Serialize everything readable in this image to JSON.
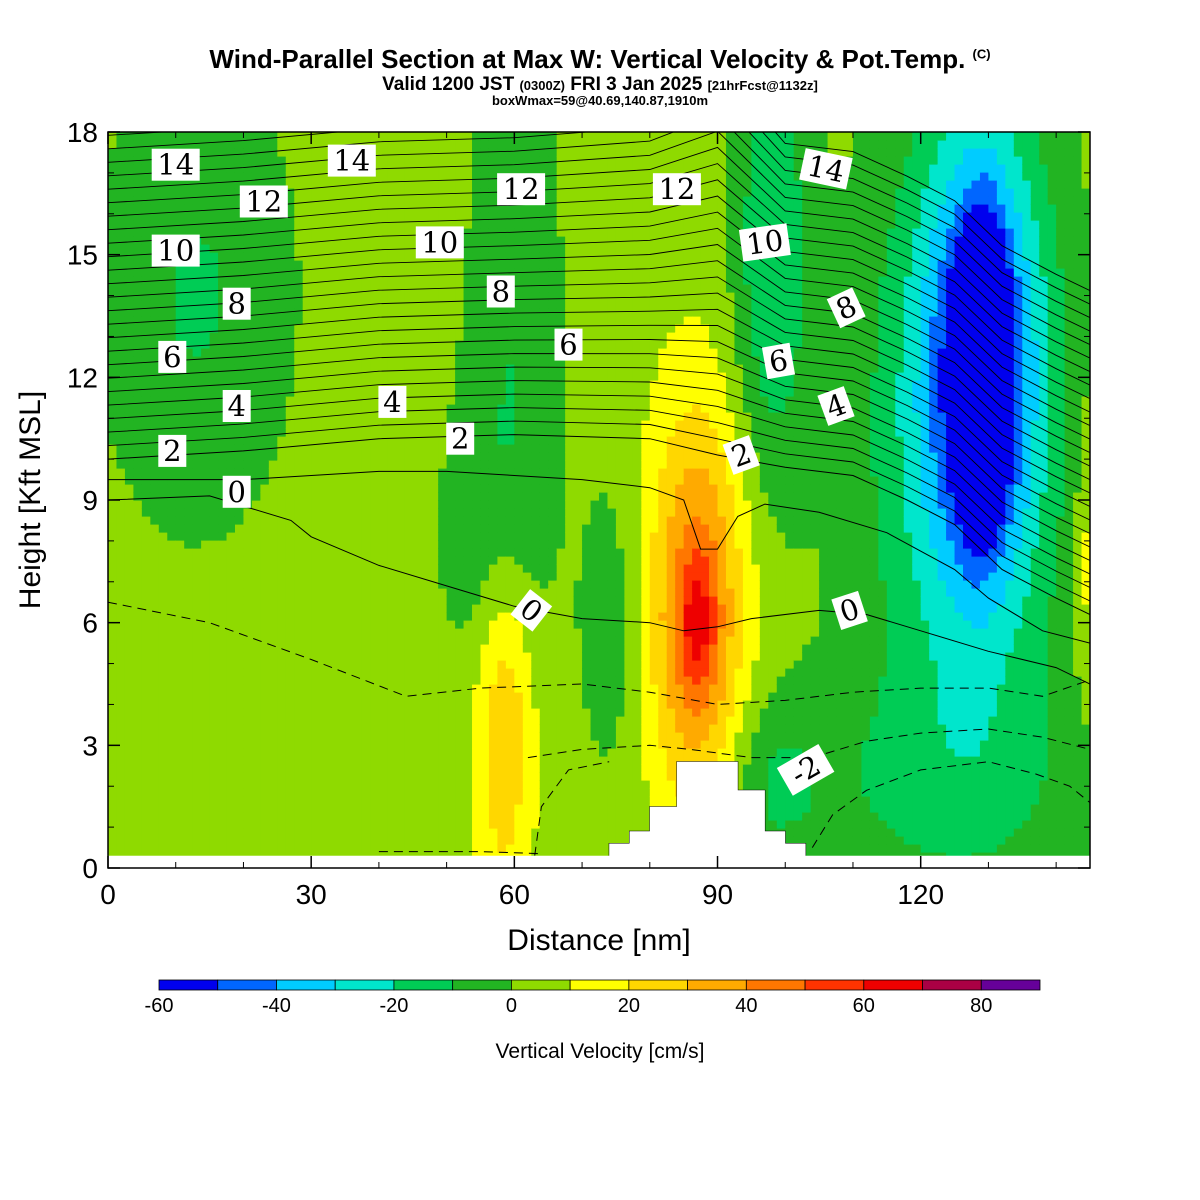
{
  "header": {
    "title": "Wind-Parallel Section at Max W: Vertical Velocity & Pot.Temp.",
    "copyright": "(C)",
    "valid_prefix": "Valid 1200 JST",
    "valid_zulu": "(0300Z)",
    "valid_date": "FRI 3 Jan 2025",
    "forecast": "[21hrFcst@1132z]",
    "box_info": "boxWmax=59@40.69,140.87,1910m"
  },
  "chart_data": {
    "type": "heatmap",
    "xlabel": "Distance [nm]",
    "ylabel": "Height [Kft MSL]",
    "xlim": [
      0,
      145
    ],
    "ylim": [
      0,
      18
    ],
    "xticks": [
      0,
      30,
      60,
      90,
      120
    ],
    "yticks": [
      0,
      3,
      6,
      9,
      12,
      15,
      18
    ],
    "colorbar": {
      "label": "Vertical Velocity [cm/s]",
      "levels": [
        -60,
        -50,
        -40,
        -30,
        -20,
        -10,
        0,
        10,
        20,
        30,
        40,
        50,
        60,
        70,
        80,
        90
      ],
      "tick_labels": [
        "-60",
        "-40",
        "-20",
        "0",
        "20",
        "40",
        "60",
        "80"
      ],
      "tick_values": [
        -60,
        -40,
        -20,
        0,
        20,
        40,
        60,
        80
      ],
      "colors": [
        "#0000ee",
        "#0066ff",
        "#00ccff",
        "#00e6cc",
        "#00cc55",
        "#22b422",
        "#8fda00",
        "#ffff00",
        "#ffd700",
        "#ffaa00",
        "#ff7700",
        "#ff3300",
        "#ee0000",
        "#aa0044",
        "#660099"
      ]
    },
    "background_value": 5,
    "features": [
      {
        "x": 129,
        "y": 12.0,
        "sx": 2.2,
        "sy": 2.2,
        "amp": -70
      },
      {
        "x": 129,
        "y": 12.5,
        "sx": 6,
        "sy": 4,
        "amp": -45
      },
      {
        "x": 126,
        "y": 10.5,
        "sx": 11,
        "sy": 6,
        "amp": -28
      },
      {
        "x": 98,
        "y": 15.0,
        "sx": 4,
        "sy": 4,
        "amp": -24
      },
      {
        "x": 13,
        "y": 14.0,
        "sx": 10,
        "sy": 4,
        "amp": -16
      },
      {
        "x": 60,
        "y": 13.0,
        "sx": 5,
        "sy": 6,
        "amp": -14
      },
      {
        "x": 56,
        "y": 8.0,
        "sx": 5,
        "sy": 2.5,
        "amp": -12
      },
      {
        "x": 74,
        "y": 6.0,
        "sx": 3,
        "sy": 2.5,
        "amp": -12
      },
      {
        "x": 122,
        "y": 2.0,
        "sx": 20,
        "sy": 2.0,
        "amp": -12
      },
      {
        "x": 98,
        "y": 2.0,
        "sx": 5,
        "sy": 1.5,
        "amp": -12
      },
      {
        "x": 87,
        "y": 6.2,
        "sx": 5,
        "sy": 3.6,
        "amp": 42
      },
      {
        "x": 87,
        "y": 6.0,
        "sx": 2,
        "sy": 1.2,
        "amp": 20
      },
      {
        "x": 58.5,
        "y": 3.8,
        "sx": 3.2,
        "sy": 3.3,
        "amp": 28
      },
      {
        "x": 145,
        "y": 7.5,
        "sx": 1.5,
        "sy": 2.5,
        "amp": 14
      }
    ],
    "terrain": [
      [
        74,
        0
      ],
      [
        74,
        0.6
      ],
      [
        77,
        0.6
      ],
      [
        77,
        0.9
      ],
      [
        80,
        0.9
      ],
      [
        80,
        1.5
      ],
      [
        84,
        1.5
      ],
      [
        84,
        2.6
      ],
      [
        93,
        2.6
      ],
      [
        93,
        1.9
      ],
      [
        97,
        1.9
      ],
      [
        97,
        0.9
      ],
      [
        100,
        0.9
      ],
      [
        100,
        0.6
      ],
      [
        103,
        0.6
      ],
      [
        103,
        0
      ]
    ],
    "theta_labels": [
      {
        "text": "14",
        "x": 10,
        "y": 17.2,
        "rot": 0
      },
      {
        "text": "14",
        "x": 36,
        "y": 17.3,
        "rot": 0
      },
      {
        "text": "12",
        "x": 23,
        "y": 16.3,
        "rot": 0
      },
      {
        "text": "12",
        "x": 61,
        "y": 16.6,
        "rot": 0
      },
      {
        "text": "12",
        "x": 84,
        "y": 16.6,
        "rot": 0
      },
      {
        "text": "14",
        "x": 106,
        "y": 17.1,
        "rot": 12
      },
      {
        "text": "10",
        "x": 10,
        "y": 15.1,
        "rot": 0
      },
      {
        "text": "10",
        "x": 49,
        "y": 15.3,
        "rot": 0
      },
      {
        "text": "10",
        "x": 97,
        "y": 15.3,
        "rot": -8
      },
      {
        "text": "8",
        "x": 19,
        "y": 13.8,
        "rot": 0
      },
      {
        "text": "8",
        "x": 58,
        "y": 14.1,
        "rot": 0
      },
      {
        "text": "8",
        "x": 109,
        "y": 13.7,
        "rot": -25
      },
      {
        "text": "6",
        "x": 9.5,
        "y": 12.5,
        "rot": 0
      },
      {
        "text": "6",
        "x": 68,
        "y": 12.8,
        "rot": 0
      },
      {
        "text": "6",
        "x": 99,
        "y": 12.4,
        "rot": -10
      },
      {
        "text": "4",
        "x": 19,
        "y": 11.3,
        "rot": 0
      },
      {
        "text": "4",
        "x": 42,
        "y": 11.4,
        "rot": 0
      },
      {
        "text": "4",
        "x": 107.5,
        "y": 11.3,
        "rot": -20
      },
      {
        "text": "2",
        "x": 9.5,
        "y": 10.2,
        "rot": 0
      },
      {
        "text": "2",
        "x": 52,
        "y": 10.5,
        "rot": 0
      },
      {
        "text": "2",
        "x": 93.5,
        "y": 10.1,
        "rot": -20
      },
      {
        "text": "0",
        "x": 19,
        "y": 9.2,
        "rot": 0
      },
      {
        "text": "0",
        "x": 62.5,
        "y": 6.3,
        "rot": 38
      },
      {
        "text": "0",
        "x": 109.5,
        "y": 6.3,
        "rot": -18
      },
      {
        "text": "-2",
        "x": 103,
        "y": 2.4,
        "rot": -30
      }
    ],
    "theta_lines": [
      {
        "label": "0",
        "dashed": false,
        "points": [
          [
            0,
            9.0
          ],
          [
            15,
            9.1
          ],
          [
            27,
            8.5
          ],
          [
            30,
            8.1
          ],
          [
            40,
            7.4
          ],
          [
            50,
            6.9
          ],
          [
            60,
            6.4
          ],
          [
            70,
            6.1
          ],
          [
            80,
            6.0
          ],
          [
            85,
            5.8
          ],
          [
            90,
            5.9
          ],
          [
            95,
            6.1
          ],
          [
            105,
            6.3
          ],
          [
            112,
            6.2
          ],
          [
            120,
            5.8
          ],
          [
            130,
            5.3
          ],
          [
            140,
            4.9
          ],
          [
            145,
            4.5
          ]
        ]
      },
      {
        "label": "1",
        "dashed": false,
        "points": [
          [
            0,
            9.5
          ],
          [
            20,
            9.5
          ],
          [
            40,
            9.7
          ],
          [
            50,
            9.7
          ],
          [
            60,
            9.6
          ],
          [
            70,
            9.5
          ],
          [
            80,
            9.3
          ],
          [
            85,
            9.0
          ],
          [
            87.5,
            7.8
          ],
          [
            90,
            7.8
          ],
          [
            93,
            8.6
          ],
          [
            97,
            8.9
          ],
          [
            105,
            8.7
          ],
          [
            115,
            8.2
          ],
          [
            125,
            7.3
          ],
          [
            130,
            6.6
          ],
          [
            138,
            5.8
          ],
          [
            145,
            5.5
          ]
        ]
      },
      {
        "label": "2",
        "dashed": false,
        "points": [
          [
            0,
            10.0
          ],
          [
            20,
            10.2
          ],
          [
            40,
            10.5
          ],
          [
            60,
            10.6
          ],
          [
            80,
            10.5
          ],
          [
            90,
            10.1
          ],
          [
            100,
            9.8
          ],
          [
            110,
            9.6
          ],
          [
            118,
            9.0
          ],
          [
            125,
            8.4
          ],
          [
            132,
            7.3
          ],
          [
            140,
            6.6
          ],
          [
            145,
            6.2
          ]
        ]
      },
      {
        "label": "-1",
        "dashed": true,
        "points": [
          [
            0,
            6.5
          ],
          [
            15,
            6.0
          ],
          [
            30,
            5.1
          ],
          [
            44,
            4.2
          ],
          [
            55,
            4.4
          ],
          [
            70,
            4.5
          ],
          [
            80,
            4.3
          ],
          [
            90,
            4.0
          ],
          [
            100,
            4.1
          ],
          [
            110,
            4.3
          ],
          [
            120,
            4.4
          ],
          [
            130,
            4.4
          ],
          [
            138,
            4.2
          ],
          [
            145,
            4.6
          ]
        ]
      },
      {
        "label": "-2",
        "dashed": true,
        "points": [
          [
            62,
            2.7
          ],
          [
            70,
            2.9
          ],
          [
            80,
            3.0
          ],
          [
            86,
            2.9
          ],
          [
            95,
            2.7
          ],
          [
            104,
            2.7
          ],
          [
            112,
            3.1
          ],
          [
            120,
            3.3
          ],
          [
            130,
            3.4
          ],
          [
            138,
            3.2
          ],
          [
            145,
            2.9
          ]
        ]
      },
      {
        "label": "-3",
        "dashed": true,
        "points": [
          [
            63,
            0.3
          ],
          [
            64,
            1.5
          ],
          [
            68,
            2.4
          ],
          [
            74,
            2.6
          ]
        ]
      },
      {
        "label": "-3b",
        "dashed": true,
        "points": [
          [
            104,
            0.5
          ],
          [
            107,
            1.3
          ],
          [
            112,
            1.9
          ],
          [
            120,
            2.4
          ],
          [
            130,
            2.6
          ],
          [
            137,
            2.3
          ],
          [
            142,
            2.0
          ],
          [
            145,
            1.6
          ]
        ]
      },
      {
        "label": "-4",
        "dashed": true,
        "points": [
          [
            40,
            0.4
          ],
          [
            55,
            0.4
          ],
          [
            64,
            0.35
          ]
        ]
      }
    ]
  }
}
